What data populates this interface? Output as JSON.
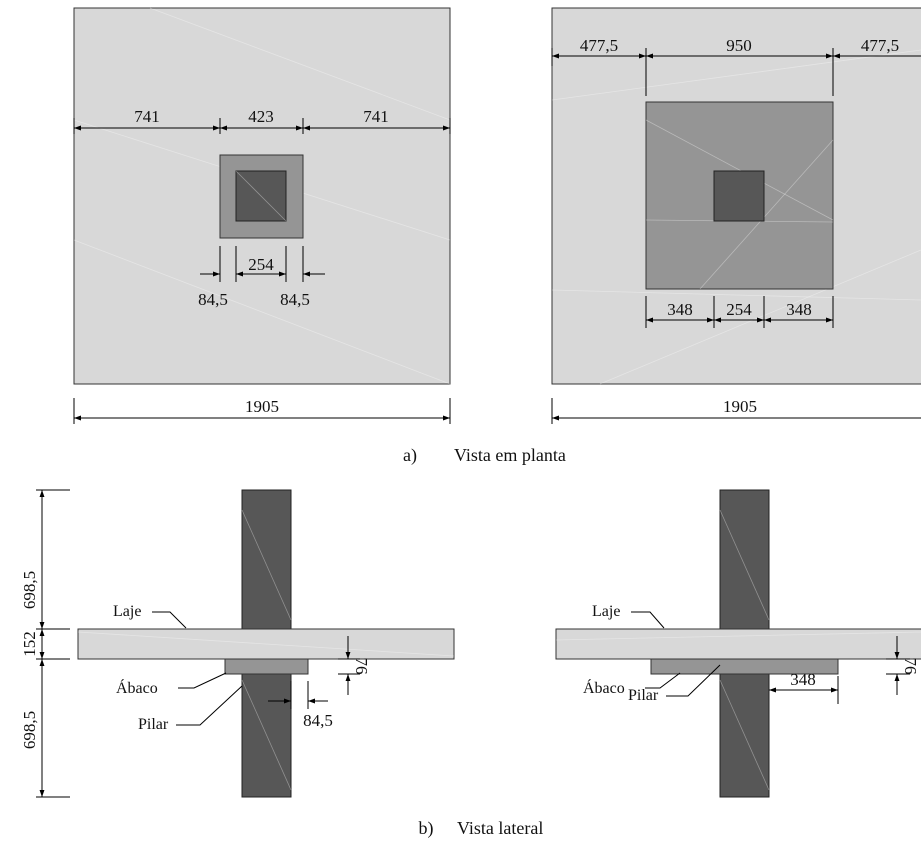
{
  "plan_left": {
    "dim_top": [
      "741",
      "423",
      "741"
    ],
    "dim_bottom_inner": "254",
    "dim_bottom_sides": [
      "84,5",
      "84,5"
    ],
    "dim_total": "1905"
  },
  "plan_right": {
    "dim_top": [
      "477,5",
      "950",
      "477,5"
    ],
    "dim_bottom": [
      "348",
      "254",
      "348"
    ],
    "dim_total": "1905"
  },
  "caption_a": {
    "letter": "a)",
    "text": "Vista em planta"
  },
  "side_left": {
    "dim_vertical": [
      "698,5",
      "152",
      "698,5"
    ],
    "labels": {
      "slab": "Laje",
      "drop": "Ábaco",
      "column": "Pilar"
    },
    "dim_drop_thickness": "76",
    "dim_drop_overhang": "84,5"
  },
  "side_right": {
    "labels": {
      "slab": "Laje",
      "drop": "Ábaco",
      "column": "Pilar"
    },
    "dim_drop_thickness": "76",
    "dim_drop_overhang": "348"
  },
  "caption_b": {
    "letter": "b)",
    "text": "Vista lateral"
  }
}
